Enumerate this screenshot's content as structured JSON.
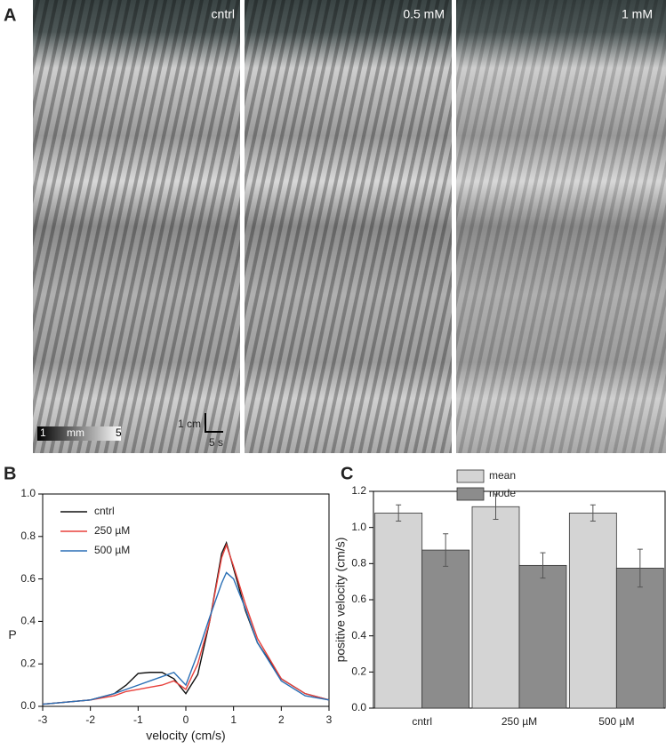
{
  "panel_a": {
    "letter": "A",
    "labels": [
      "cntrl",
      "0.5 mM",
      "1 mM"
    ],
    "colorbar": [
      "1",
      "mm",
      "5"
    ],
    "scale_y": "1 cm",
    "scale_x": "5 s"
  },
  "chart_data": [
    {
      "type": "line",
      "letter": "B",
      "xlabel": "velocity (cm/s)",
      "ylabel": "P",
      "x": [
        -3,
        -2.5,
        -2,
        -1.5,
        -1.25,
        -1,
        -0.75,
        -0.5,
        -0.25,
        0,
        0.25,
        0.5,
        0.75,
        0.85,
        1,
        1.25,
        1.5,
        2,
        2.5,
        3
      ],
      "series": [
        {
          "name": "cntrl",
          "color": "#111111",
          "values": [
            0.01,
            0.02,
            0.03,
            0.06,
            0.1,
            0.155,
            0.16,
            0.16,
            0.13,
            0.06,
            0.15,
            0.4,
            0.72,
            0.77,
            0.65,
            0.45,
            0.3,
            0.13,
            0.06,
            0.03
          ]
        },
        {
          "name": "250 µM",
          "color": "#e8413c",
          "values": [
            0.01,
            0.02,
            0.03,
            0.05,
            0.07,
            0.08,
            0.09,
            0.1,
            0.12,
            0.08,
            0.2,
            0.4,
            0.7,
            0.76,
            0.66,
            0.48,
            0.32,
            0.13,
            0.06,
            0.03
          ]
        },
        {
          "name": "500 µM",
          "color": "#2a6fb5",
          "values": [
            0.01,
            0.02,
            0.03,
            0.06,
            0.08,
            0.1,
            0.12,
            0.14,
            0.16,
            0.1,
            0.25,
            0.42,
            0.58,
            0.63,
            0.6,
            0.46,
            0.3,
            0.12,
            0.05,
            0.03
          ]
        }
      ],
      "xlim": [
        -3,
        3
      ],
      "xticks": [
        -3,
        -2,
        -1,
        0,
        1,
        2,
        3
      ],
      "ylim": [
        0,
        1
      ],
      "yticks": [
        {
          "value": 0,
          "label": "0.0"
        },
        0.2,
        0.4,
        0.6,
        0.8,
        {
          "value": 1,
          "label": "1.0"
        }
      ],
      "legend": "upper left",
      "grid": false
    },
    {
      "type": "bar",
      "letter": "C",
      "ylabel": "positive velocity (cm/s)",
      "categories": [
        "cntrl",
        "250 µM",
        "500 µM"
      ],
      "series": [
        {
          "name": "mean",
          "color": "#d4d4d4",
          "values": [
            1.08,
            1.115,
            1.08
          ],
          "errors": [
            0.045,
            0.07,
            0.045
          ]
        },
        {
          "name": "mode",
          "color": "#8c8c8c",
          "values": [
            0.875,
            0.79,
            0.775
          ],
          "errors": [
            0.09,
            0.07,
            0.105
          ]
        }
      ],
      "ylim": [
        0,
        1.2
      ],
      "yticks": [
        {
          "value": 0,
          "label": "0.0"
        },
        0.2,
        0.4,
        0.6,
        0.8,
        {
          "value": 1,
          "label": "1.0"
        },
        1.2
      ],
      "legend": "upper center",
      "grid": false
    }
  ]
}
